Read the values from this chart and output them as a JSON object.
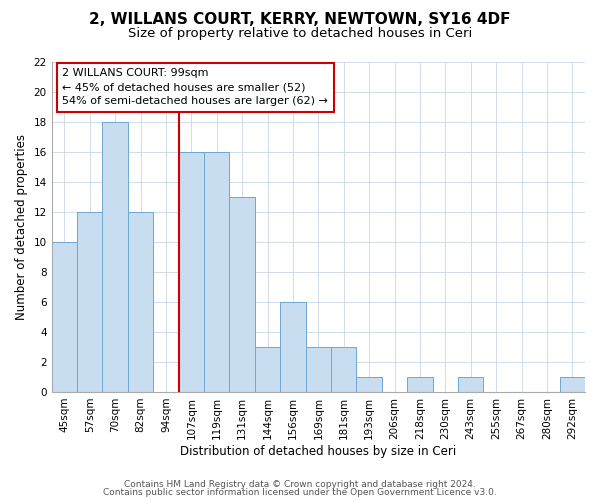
{
  "title": "2, WILLANS COURT, KERRY, NEWTOWN, SY16 4DF",
  "subtitle": "Size of property relative to detached houses in Ceri",
  "xlabel": "Distribution of detached houses by size in Ceri",
  "ylabel": "Number of detached properties",
  "bar_color": "#c8ddf0",
  "bar_edge_color": "#6ea8d0",
  "categories": [
    "45sqm",
    "57sqm",
    "70sqm",
    "82sqm",
    "94sqm",
    "107sqm",
    "119sqm",
    "131sqm",
    "144sqm",
    "156sqm",
    "169sqm",
    "181sqm",
    "193sqm",
    "206sqm",
    "218sqm",
    "230sqm",
    "243sqm",
    "255sqm",
    "267sqm",
    "280sqm",
    "292sqm"
  ],
  "values": [
    10,
    12,
    18,
    12,
    0,
    16,
    16,
    13,
    3,
    6,
    3,
    3,
    1,
    0,
    1,
    0,
    1,
    0,
    0,
    0,
    1
  ],
  "ylim": [
    0,
    22
  ],
  "yticks": [
    0,
    2,
    4,
    6,
    8,
    10,
    12,
    14,
    16,
    18,
    20,
    22
  ],
  "vline_x": 4.5,
  "vline_color": "#cc0000",
  "annotation_title": "2 WILLANS COURT: 99sqm",
  "annotation_line1": "← 45% of detached houses are smaller (52)",
  "annotation_line2": "54% of semi-detached houses are larger (62) →",
  "annotation_box_color": "#ffffff",
  "annotation_box_edge": "#cc0000",
  "footer1": "Contains HM Land Registry data © Crown copyright and database right 2024.",
  "footer2": "Contains public sector information licensed under the Open Government Licence v3.0.",
  "grid_color": "#c8d8e8",
  "title_fontsize": 11,
  "subtitle_fontsize": 9.5,
  "label_fontsize": 8.5,
  "tick_fontsize": 7.5,
  "footer_fontsize": 6.5,
  "annotation_fontsize": 8
}
